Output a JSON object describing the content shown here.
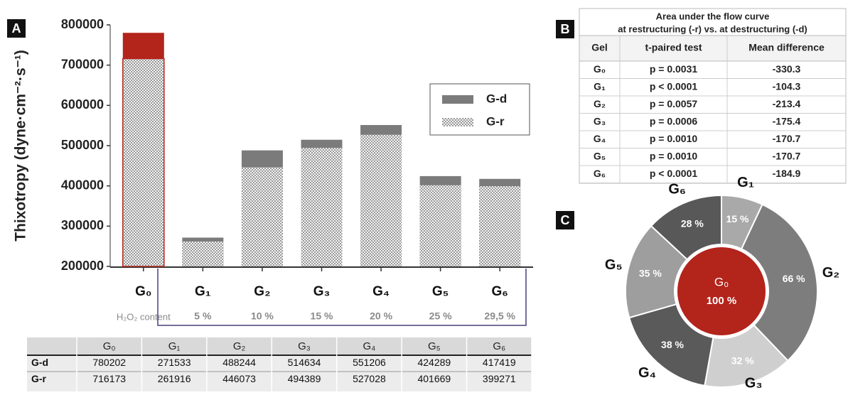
{
  "chart_data": [
    {
      "type": "bar",
      "panel_label": "A",
      "y_label": "Thixotropy (dyne·cm⁻²·s⁻¹)",
      "categories": [
        "G₀",
        "G₁",
        "G₂",
        "G₃",
        "G₄",
        "G₅",
        "G₆"
      ],
      "series": [
        {
          "name": "G-d",
          "color": "#7b7b7b",
          "values": [
            780202,
            271533,
            488244,
            514634,
            551206,
            424289,
            417419
          ]
        },
        {
          "name": "G-r",
          "color": "#c8c8c8",
          "values": [
            716173,
            261916,
            446073,
            494389,
            527028,
            401669,
            399271
          ]
        }
      ],
      "highlight": {
        "index": 0,
        "color": "#b3241b"
      },
      "ylim": [
        200000,
        800000
      ],
      "yticks": [
        200000,
        300000,
        400000,
        500000,
        600000,
        700000,
        800000
      ],
      "legend": "upper right",
      "h2o2_label": "H₂O₂ content",
      "h2o2_content": [
        null,
        "5 %",
        "10 %",
        "15 %",
        "20 %",
        "25 %",
        "29,5 %"
      ]
    },
    {
      "type": "table",
      "panel_label": "B",
      "title_lines": [
        "Area under the flow curve",
        "at restructuring  (-r) vs. at destructuring  (-d)"
      ],
      "columns": [
        "Gel",
        "t-paired test",
        "Mean difference"
      ],
      "rows": [
        [
          "G₀",
          "p = 0.0031",
          -330.3
        ],
        [
          "G₁",
          "p < 0.0001",
          -104.3
        ],
        [
          "G₂",
          "p = 0.0057",
          -213.4
        ],
        [
          "G₃",
          "p = 0.0006",
          -175.4
        ],
        [
          "G₄",
          "p = 0.0010",
          -170.7
        ],
        [
          "G₅",
          "p = 0.0010",
          -170.7
        ],
        [
          "G₆",
          "p < 0.0001",
          -184.9
        ]
      ]
    },
    {
      "type": "pie",
      "panel_label": "C",
      "categories": [
        "G₁",
        "G₂",
        "G₃",
        "G₄",
        "G₅",
        "G₆"
      ],
      "values": [
        15,
        66,
        32,
        38,
        35,
        28
      ],
      "value_labels": [
        "15 %",
        "66 %",
        "32 %",
        "38 %",
        "35 %",
        "28 %"
      ],
      "colors": [
        "#a9a9a9",
        "#7d7d7d",
        "#cfcfcf",
        "#5a5a5a",
        "#9e9e9e",
        "#585858"
      ],
      "center_label": "G₀",
      "center_value": 100,
      "center_value_label": "100 %",
      "center_color": "#b3241b"
    }
  ]
}
